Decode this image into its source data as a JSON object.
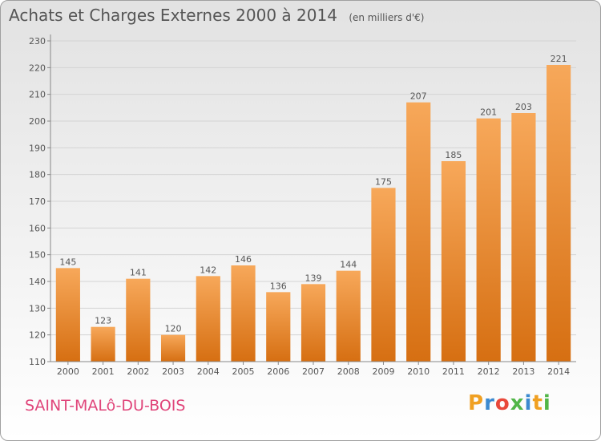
{
  "title": "Achats et Charges Externes 2000 à 2014",
  "subtitle": "(en milliers d'€)",
  "city": "SAINT-MALô-DU-BOIS",
  "logo": {
    "letters": [
      "P",
      "r",
      "o",
      "x",
      "i",
      "t",
      "i"
    ],
    "colors": [
      "#f0a022",
      "#3c8ad0",
      "#e9483a",
      "#52b648",
      "#3c8ad0",
      "#f0a022",
      "#52b648"
    ]
  },
  "colors": {
    "bar_top": "#f7a85a",
    "bar_bottom": "#d66f12",
    "city": "#e0457a",
    "text": "#555555"
  },
  "chart_data": {
    "type": "bar",
    "categories": [
      "2000",
      "2001",
      "2002",
      "2003",
      "2004",
      "2005",
      "2006",
      "2007",
      "2008",
      "2009",
      "2010",
      "2011",
      "2012",
      "2013",
      "2014"
    ],
    "values": [
      145,
      123,
      141,
      120,
      142,
      146,
      136,
      139,
      144,
      175,
      207,
      185,
      201,
      203,
      221
    ],
    "ylim": [
      110,
      230
    ],
    "yticks": [
      110,
      120,
      130,
      140,
      150,
      160,
      170,
      180,
      190,
      200,
      210,
      220,
      230
    ],
    "grid": true,
    "legend": "none"
  }
}
